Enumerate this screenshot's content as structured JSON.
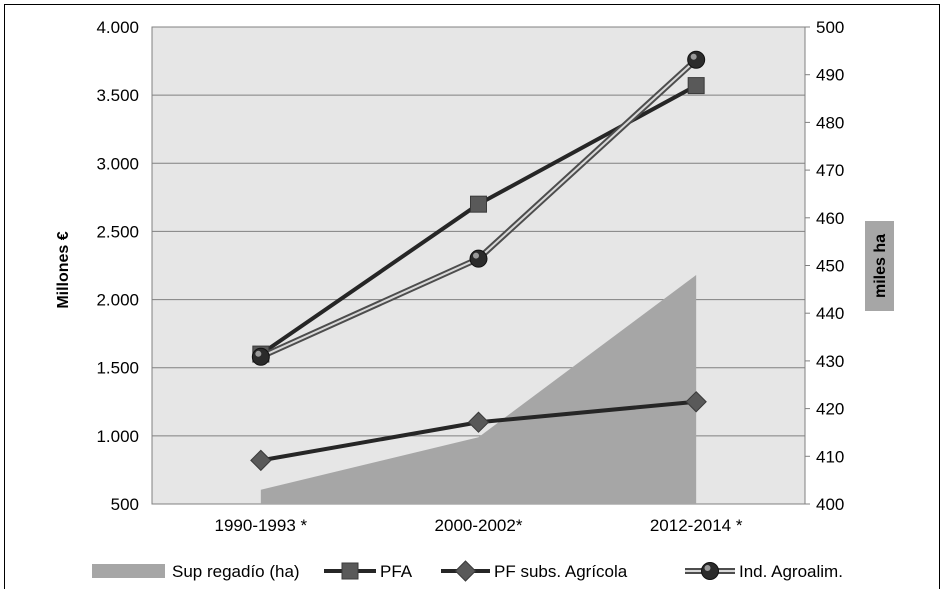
{
  "chart_data": {
    "type": "line",
    "categories": [
      "1990-1993 *",
      "2000-2002*",
      "2012-2014 *"
    ],
    "y_left": {
      "label": "Millones €",
      "range": [
        500,
        4000
      ],
      "ticks": [
        "500",
        "1.000",
        "1.500",
        "2.000",
        "2.500",
        "3.000",
        "3.500",
        "4.000"
      ],
      "tick_values": [
        500,
        1000,
        1500,
        2000,
        2500,
        3000,
        3500,
        4000
      ]
    },
    "y_right": {
      "label": "miles ha",
      "range": [
        400,
        500
      ],
      "ticks": [
        "400",
        "410",
        "420",
        "430",
        "440",
        "450",
        "460",
        "470",
        "480",
        "490",
        "500"
      ],
      "tick_values": [
        400,
        410,
        420,
        430,
        440,
        450,
        460,
        470,
        480,
        490,
        500
      ]
    },
    "grid": true,
    "legend_position": "bottom",
    "series": [
      {
        "name": "Sup regadío  (ha)",
        "type": "area",
        "axis": "right",
        "color": "#a6a6a6",
        "values": [
          403,
          414,
          448
        ]
      },
      {
        "name": "PFA",
        "type": "line",
        "axis": "left",
        "marker": "square",
        "color": "#262626",
        "values": [
          1600,
          2700,
          3570
        ]
      },
      {
        "name": "PF subs. Agrícola",
        "type": "line",
        "axis": "left",
        "marker": "diamond",
        "color": "#262626",
        "values": [
          820,
          1100,
          1250
        ]
      },
      {
        "name": "Ind. Agroalim.",
        "type": "line",
        "axis": "left",
        "marker": "circle",
        "color": "#595959",
        "values": [
          1580,
          2300,
          3760
        ]
      }
    ]
  }
}
